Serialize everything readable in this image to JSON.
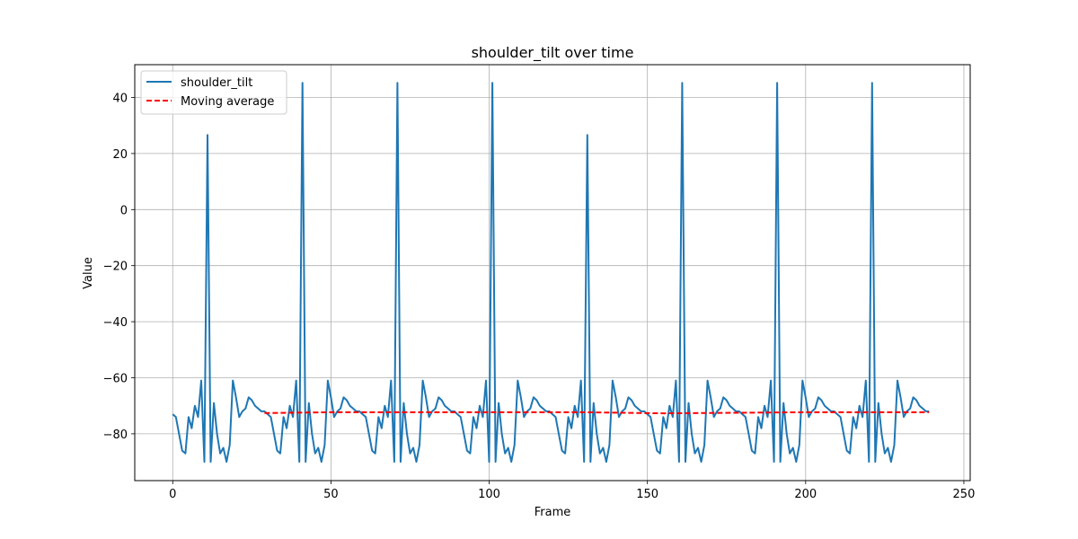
{
  "chart_data": {
    "type": "line",
    "title": "shoulder_tilt over time",
    "xlabel": "Frame",
    "ylabel": "Value",
    "xlim": [
      -12,
      252
    ],
    "ylim": [
      -96.7,
      51.7
    ],
    "xticks": [
      0,
      50,
      100,
      150,
      200,
      250
    ],
    "yticks": [
      -80,
      -60,
      -40,
      -20,
      0,
      20,
      40
    ],
    "grid": true,
    "legend": "top-left",
    "base_pattern": [
      -73,
      -74,
      -80,
      -86,
      -87,
      -74,
      -78,
      -70,
      -74,
      -61,
      -90,
      -85,
      -90,
      -69,
      -80,
      -87,
      -85,
      -90,
      -84,
      -61,
      -67,
      -74,
      -72,
      -71,
      -67,
      -68,
      -70,
      -71,
      -72,
      -72
    ],
    "spike_frames": [
      11,
      41,
      71,
      101,
      131,
      161,
      191,
      221
    ],
    "spike_values": [
      26.6,
      45.2,
      45.2,
      45.2,
      26.6,
      45.2,
      45.2,
      45.2
    ],
    "frame_count": 240,
    "moving_average": {
      "start": 29,
      "end": 239,
      "values_at": [
        [
          29,
          -72.6
        ],
        [
          50,
          -72.3
        ],
        [
          100,
          -72.3
        ],
        [
          130,
          -72.3
        ],
        [
          155,
          -72.7
        ],
        [
          200,
          -72.3
        ],
        [
          239,
          -72.3
        ]
      ]
    },
    "series": [
      {
        "name": "shoulder_tilt",
        "color": "#1f77b4",
        "style": "solid"
      },
      {
        "name": "Moving average",
        "color": "#ff0000",
        "style": "dashed"
      }
    ]
  }
}
